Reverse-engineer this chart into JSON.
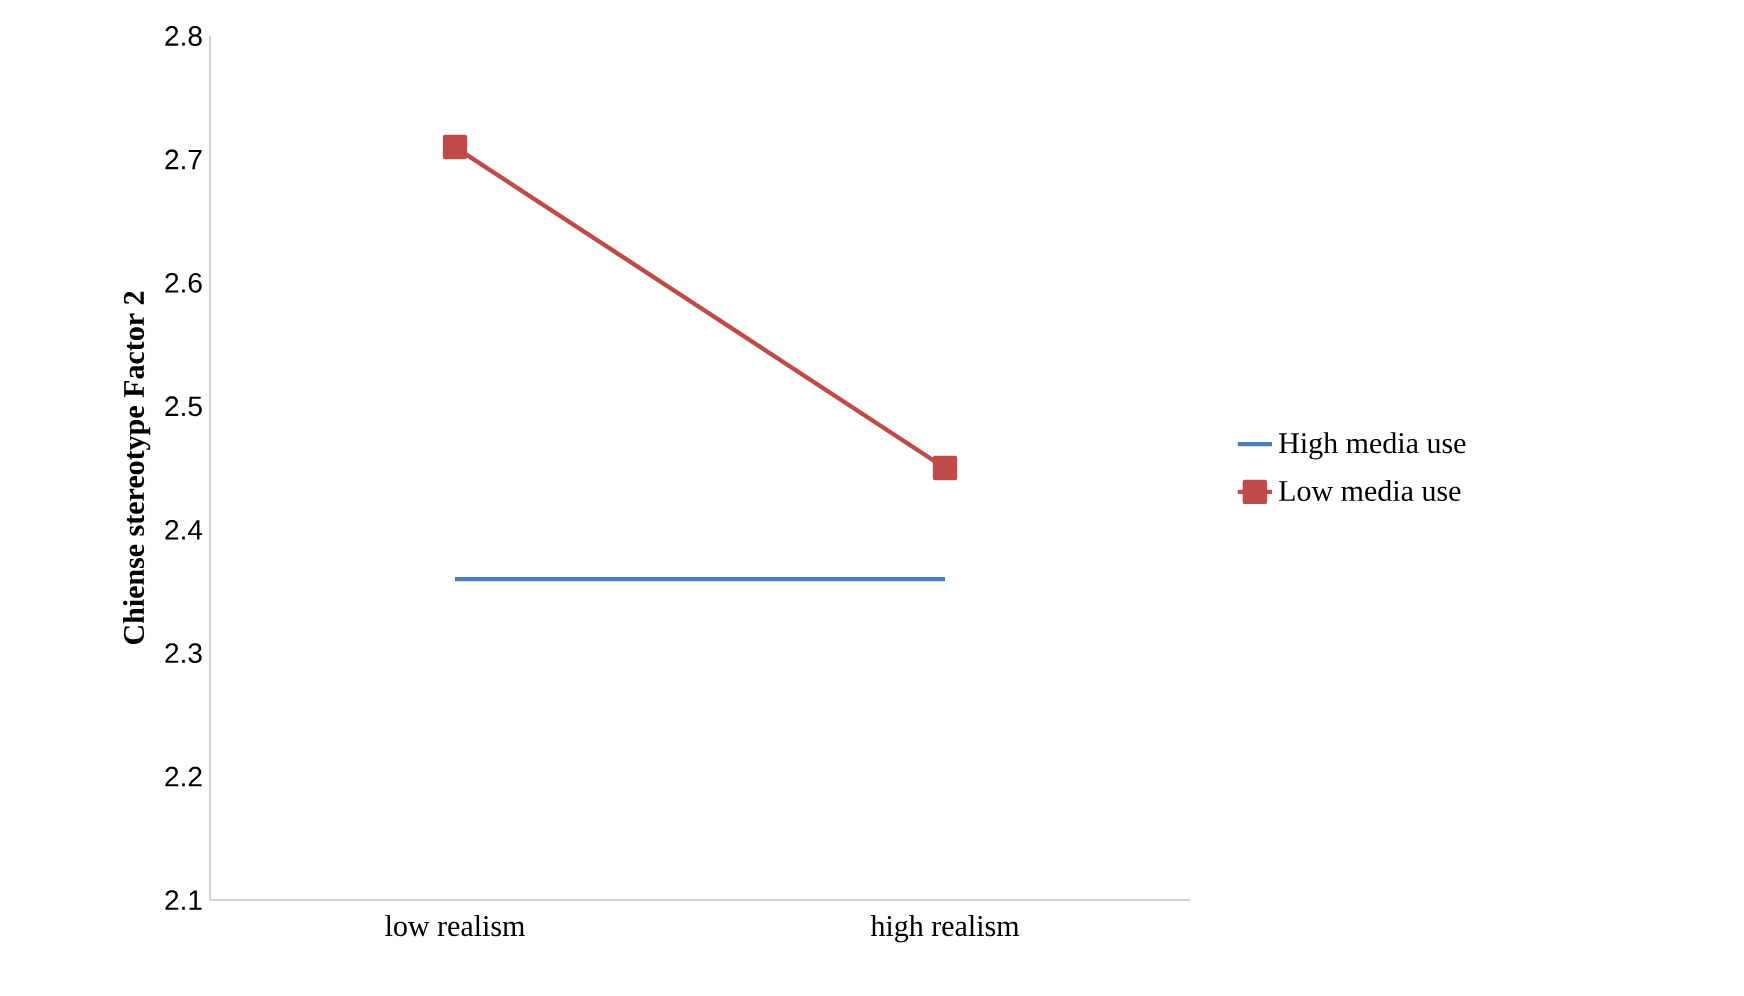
{
  "chart_data": {
    "type": "line",
    "ylabel": "Chiense stereotype Factor 2",
    "categories": [
      "low realism",
      "high realism"
    ],
    "series": [
      {
        "name": "High media use",
        "color": "#4a7ebb",
        "marker": "none",
        "values": [
          2.36,
          2.36
        ]
      },
      {
        "name": "Low media use",
        "color": "#be4b48",
        "marker": "square",
        "values": [
          2.71,
          2.45
        ]
      }
    ],
    "ylim": [
      2.1,
      2.8
    ],
    "yticks": [
      2.1,
      2.2,
      2.3,
      2.4,
      2.5,
      2.6,
      2.7,
      2.8
    ],
    "grid": false,
    "legend": "right"
  }
}
